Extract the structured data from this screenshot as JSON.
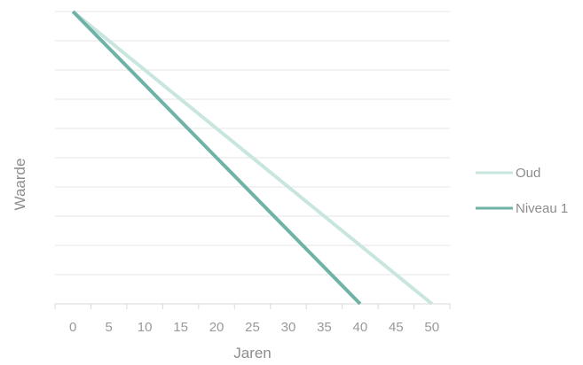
{
  "chart_data": {
    "type": "line",
    "xlabel": "Jaren",
    "ylabel": "Waarde",
    "xlim": [
      -2.5,
      52.5
    ],
    "x_ticks": [
      0,
      5,
      10,
      15,
      20,
      25,
      30,
      35,
      40,
      45,
      50
    ],
    "ylim": [
      0,
      100
    ],
    "y_ticks_visible": false,
    "grid": "horizontal",
    "legend_position": "right",
    "series": [
      {
        "name": "Oud",
        "color": "#c8e6df",
        "x": [
          0,
          50
        ],
        "y": [
          100,
          0
        ]
      },
      {
        "name": "Niveau 1",
        "color": "#6fb2a6",
        "x": [
          0,
          40
        ],
        "y": [
          100,
          0
        ]
      }
    ]
  }
}
